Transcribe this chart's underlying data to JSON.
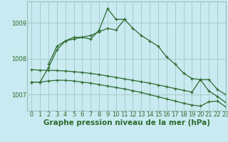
{
  "bg_color": "#c8eaf0",
  "line_color": "#2d6a2d",
  "grid_color": "#9bbfbf",
  "xlabel": "Graphe pression niveau de la mer (hPa)",
  "xlabel_fontsize": 7.5,
  "tick_fontsize": 6,
  "ylim": [
    1006.55,
    1009.6
  ],
  "xlim": [
    -0.5,
    23
  ],
  "yticks": [
    1007,
    1008,
    1009
  ],
  "series": [
    {
      "x": [
        0,
        1,
        2,
        3,
        4,
        5,
        6,
        7,
        8,
        9,
        10,
        11,
        12,
        13,
        14,
        15,
        16,
        17,
        18,
        19,
        20,
        21,
        22,
        23
      ],
      "y": [
        1007.35,
        1007.35,
        1007.75,
        1008.25,
        1008.5,
        1008.55,
        1008.6,
        1008.65,
        1008.75,
        1008.85,
        1008.8,
        1009.1,
        1008.85,
        1008.65,
        1008.5,
        1008.35,
        1008.05,
        1007.85,
        1007.6,
        1007.45,
        1007.42,
        1007.42,
        1007.15,
        1007.0
      ]
    },
    {
      "x": [
        2,
        3,
        4,
        5,
        6,
        7,
        8,
        9,
        10,
        11
      ],
      "y": [
        1007.85,
        1008.35,
        1008.5,
        1008.6,
        1008.6,
        1008.55,
        1008.8,
        1009.4,
        1009.1,
        1009.1
      ]
    },
    {
      "x": [
        0,
        1,
        2,
        3,
        4,
        5,
        6,
        7,
        8,
        9,
        10,
        11,
        12,
        13,
        14,
        15,
        16,
        17,
        18,
        19,
        20,
        21,
        22,
        23
      ],
      "y": [
        1007.7,
        1007.68,
        1007.68,
        1007.67,
        1007.66,
        1007.64,
        1007.62,
        1007.59,
        1007.56,
        1007.52,
        1007.48,
        1007.44,
        1007.4,
        1007.36,
        1007.32,
        1007.27,
        1007.22,
        1007.17,
        1007.12,
        1007.07,
        1007.42,
        1007.1,
        1006.95,
        1006.78
      ]
    },
    {
      "x": [
        0,
        1,
        2,
        3,
        4,
        5,
        6,
        7,
        8,
        9,
        10,
        11,
        12,
        13,
        14,
        15,
        16,
        17,
        18,
        19,
        20,
        21,
        22,
        23
      ],
      "y": [
        1007.35,
        1007.35,
        1007.38,
        1007.4,
        1007.4,
        1007.38,
        1007.35,
        1007.32,
        1007.28,
        1007.24,
        1007.2,
        1007.16,
        1007.11,
        1007.06,
        1007.0,
        1006.94,
        1006.88,
        1006.82,
        1006.76,
        1006.71,
        1006.68,
        1006.8,
        1006.82,
        1006.66
      ]
    }
  ]
}
